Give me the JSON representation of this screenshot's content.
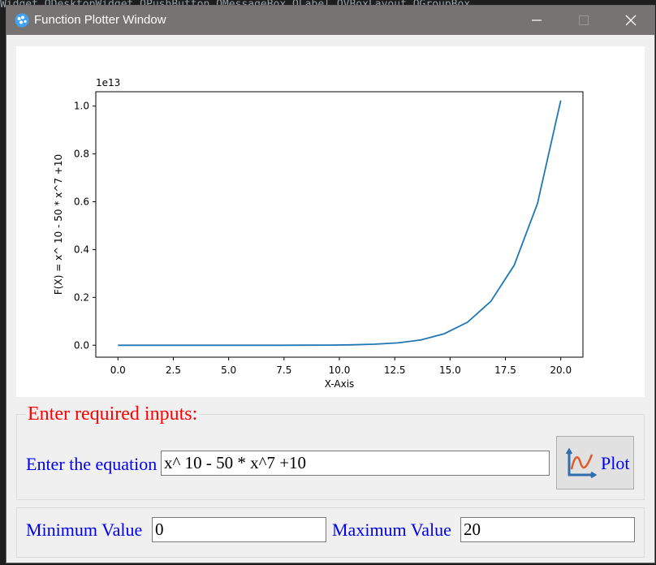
{
  "background_ide": {
    "snippet": "Widget  QDesktopWidget  QPushButton  QMessageBox  QLabel  QVBoxLayout  QGroupBox"
  },
  "window": {
    "title": "Function Plotter Window",
    "minimize_icon": "minimize-icon",
    "maximize_icon": "maximize-icon",
    "close_icon": "close-icon"
  },
  "chart_data": {
    "type": "line",
    "title": "",
    "xlabel": "X-Axis",
    "ylabel": "F(X) = x^ 10 - 50 * x^7 +10",
    "offset_text": "1e13",
    "xlim": [
      -1,
      21
    ],
    "ylim": [
      -0.05,
      1.06
    ],
    "xticks": [
      0.0,
      2.5,
      5.0,
      7.5,
      10.0,
      12.5,
      15.0,
      17.5,
      20.0
    ],
    "xtick_labels": [
      "0.0",
      "2.5",
      "5.0",
      "7.5",
      "10.0",
      "12.5",
      "15.0",
      "17.5",
      "20.0"
    ],
    "yticks": [
      0.0,
      0.2,
      0.4,
      0.6,
      0.8,
      1.0
    ],
    "ytick_labels": [
      "0.0",
      "0.2",
      "0.4",
      "0.6",
      "0.8",
      "1.0"
    ],
    "grid": false,
    "series": [
      {
        "color": "#1f77b4",
        "x": [
          0,
          1.0526,
          2.1053,
          3.1579,
          4.2105,
          5.2632,
          6.3158,
          7.3684,
          8.4211,
          9.4737,
          10.5263,
          11.5789,
          12.6316,
          13.6842,
          14.7368,
          15.7895,
          16.8421,
          17.8947,
          18.9474,
          20.0
        ],
        "y": [
          0,
          0,
          0,
          0,
          0,
          0,
          0,
          0,
          0.0002,
          0.0006,
          0.0017,
          0.0043,
          0.0099,
          0.0221,
          0.0481,
          0.0964,
          0.1837,
          0.3343,
          0.5924,
          1.0236
        ]
      }
    ]
  },
  "inputs_group": {
    "title": "Enter required inputs:",
    "equation_label": "Enter the equation",
    "equation_value": "x^ 10 - 50 * x^7 +10",
    "plot_button_label": "Plot"
  },
  "range_group": {
    "min_label": "Minimum Value",
    "min_value": "0",
    "max_label": "Maximum Value",
    "max_value": "20"
  }
}
